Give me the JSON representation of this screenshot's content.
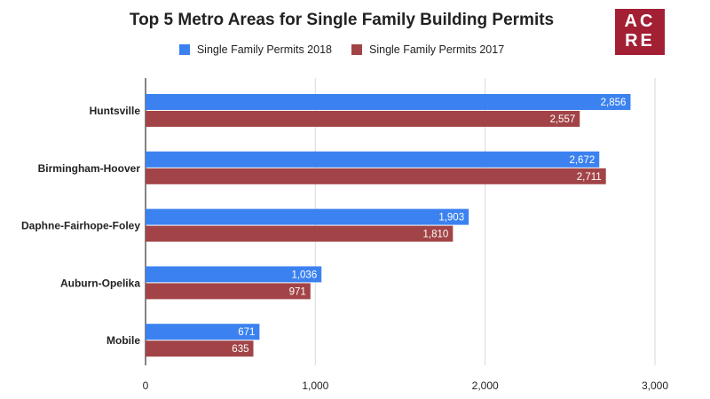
{
  "chart_data": {
    "type": "bar",
    "orientation": "horizontal",
    "title": "Top 5 Metro Areas for Single Family Building Permits",
    "categories": [
      "Huntsville",
      "Birmingham-Hoover",
      "Daphne-Fairhope-Foley",
      "Auburn-Opelika",
      "Mobile"
    ],
    "series": [
      {
        "name": "Single Family Permits 2018",
        "color": "#3b82f0",
        "values": [
          2856,
          2672,
          1903,
          1036,
          671
        ],
        "labels": [
          "2,856",
          "2,672",
          "1,903",
          "1,036",
          "671"
        ]
      },
      {
        "name": "Single Family Permits 2017",
        "color": "#a24447",
        "values": [
          2557,
          2711,
          1810,
          971,
          635
        ],
        "labels": [
          "2,557",
          "2,711",
          "1,810",
          "971",
          "635"
        ]
      }
    ],
    "xlim": [
      0,
      3000
    ],
    "x_ticks": [
      0,
      1000,
      2000,
      3000
    ],
    "x_tick_labels": [
      "0",
      "1,000",
      "2,000",
      "3,000"
    ],
    "grid": "vertical",
    "legend_position": "top"
  },
  "logo": {
    "line1": "AC",
    "line2": "RE",
    "bg_color": "#a31f34"
  }
}
